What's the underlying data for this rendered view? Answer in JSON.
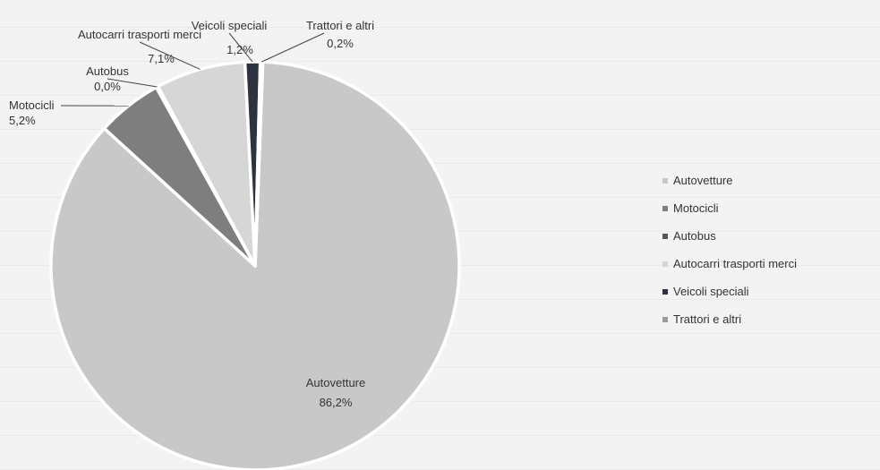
{
  "chart_data": {
    "type": "pie",
    "title": "",
    "slices": [
      {
        "label": "Autovetture",
        "value": 86.2,
        "value_label": "86,2%",
        "color": "#c8c8c8"
      },
      {
        "label": "Motocicli",
        "value": 5.2,
        "value_label": "5,2%",
        "color": "#7e7e7e"
      },
      {
        "label": "Autobus",
        "value": 0.0,
        "value_label": "0,0%",
        "color": "#555555"
      },
      {
        "label": "Autocarri trasporti merci",
        "value": 7.1,
        "value_label": "7,1%",
        "color": "#d6d6d6"
      },
      {
        "label": "Veicoli speciali",
        "value": 1.2,
        "value_label": "1,2%",
        "color": "#2e3340"
      },
      {
        "label": "Trattori e altri",
        "value": 0.2,
        "value_label": "0,2%",
        "color": "#9a9a9a"
      }
    ],
    "legend_position": "right"
  }
}
